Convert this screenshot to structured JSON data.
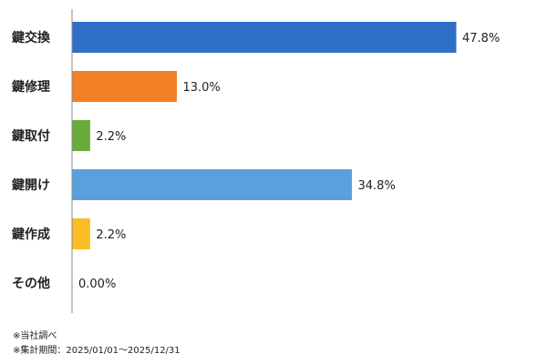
{
  "chart_data": {
    "type": "bar",
    "orientation": "horizontal",
    "categories": [
      "鍵交換",
      "鍵修理",
      "鍵取付",
      "鍵開け",
      "鍵作成",
      "その他"
    ],
    "values": [
      47.8,
      13.0,
      2.2,
      34.8,
      2.2,
      0.0
    ],
    "value_labels": [
      "47.8%",
      "13.0%",
      "2.2%",
      "34.8%",
      "2.2%",
      "0.00%"
    ],
    "colors": [
      "#2f6fc6",
      "#f28024",
      "#6aaa3a",
      "#5aa0dc",
      "#fbbd24",
      "#999999"
    ],
    "xlim": [
      0,
      50
    ],
    "grid": false,
    "legend": "none"
  },
  "notes": {
    "source": "※当社調べ",
    "period": "※集計期間：2025/01/01～2025/12/31"
  }
}
